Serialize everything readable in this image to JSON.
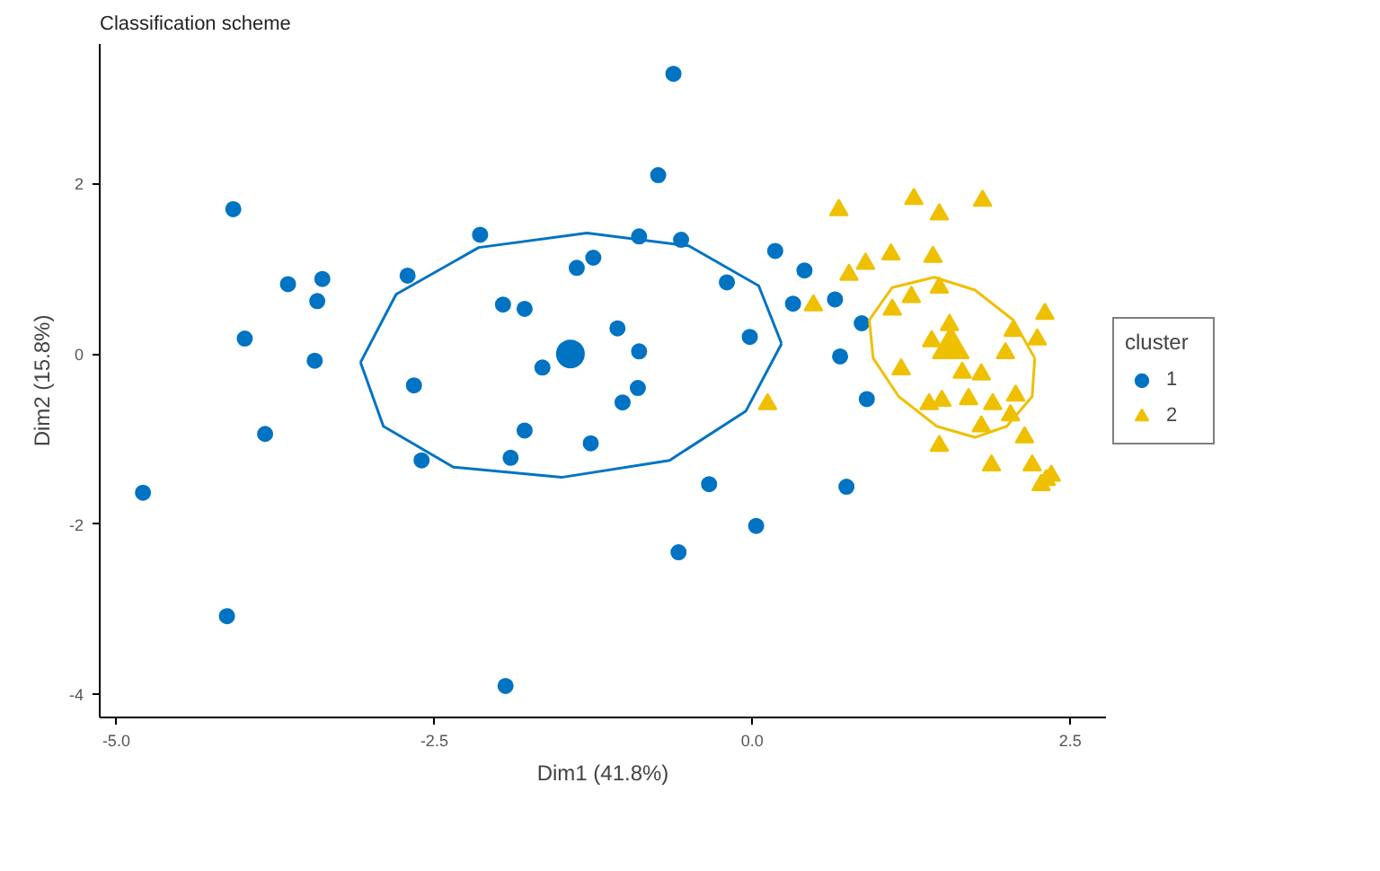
{
  "chart_data": {
    "type": "scatter",
    "title": "Classification scheme",
    "xlabel": "Dim1 (41.8%)",
    "ylabel": "Dim2 (15.8%)",
    "legend_title": "cluster",
    "legend": "right",
    "grid": false,
    "xlim": [
      -5.13,
      2.78
    ],
    "ylim": [
      -4.27,
      3.64
    ],
    "xticks": [
      {
        "value": -5,
        "label": "-5.0"
      },
      {
        "value": -2.5,
        "label": "-2.5"
      },
      {
        "value": 0,
        "label": "0.0"
      },
      {
        "value": 2.5,
        "label": "2.5"
      }
    ],
    "yticks": [
      -4,
      -2,
      0,
      2
    ],
    "series": [
      {
        "name": "1",
        "color": "#0073c2",
        "marker": "circle",
        "x": [
          -4.79,
          -4.13,
          -4.08,
          -3.99,
          -3.83,
          -3.65,
          -3.44,
          -3.42,
          -3.38,
          -2.71,
          -2.66,
          -2.6,
          -2.14,
          -1.96,
          -1.94,
          -1.9,
          -1.79,
          -1.79,
          -1.65,
          -1.38,
          -1.27,
          -1.25,
          -1.06,
          -1.02,
          -0.9,
          -0.89,
          -0.89,
          -0.74,
          -0.62,
          -0.58,
          -0.56,
          -0.34,
          -0.2,
          -0.02,
          0.03,
          0.18,
          0.32,
          0.41,
          0.65,
          0.69,
          0.74,
          0.86,
          0.9
        ],
        "values": [
          -1.63,
          -3.08,
          1.7,
          0.18,
          -0.94,
          0.82,
          -0.08,
          0.62,
          0.88,
          0.92,
          -0.37,
          -1.25,
          1.4,
          0.58,
          -3.9,
          -1.22,
          0.53,
          -0.9,
          -0.16,
          1.01,
          -1.05,
          1.13,
          0.3,
          -0.57,
          -0.4,
          1.38,
          0.03,
          2.1,
          3.29,
          -2.33,
          1.34,
          -1.53,
          0.84,
          0.2,
          -2.02,
          1.21,
          0.59,
          0.98,
          0.64,
          -0.03,
          -1.56,
          0.36,
          -0.53
        ]
      },
      {
        "name": "2",
        "color": "#efc000",
        "marker": "triangle",
        "x": [
          0.12,
          0.48,
          0.68,
          0.76,
          0.89,
          1.09,
          1.1,
          1.17,
          1.25,
          1.27,
          1.39,
          1.41,
          1.42,
          1.47,
          1.47,
          1.47,
          1.49,
          1.52,
          1.55,
          1.65,
          1.7,
          1.8,
          1.8,
          1.81,
          1.88,
          1.89,
          1.99,
          2.03,
          2.05,
          2.07,
          2.14,
          2.2,
          2.24,
          2.27,
          2.3,
          2.31,
          2.35
        ],
        "values": [
          -0.59,
          0.57,
          1.69,
          0.93,
          1.06,
          1.17,
          0.52,
          -0.18,
          0.67,
          1.82,
          -0.59,
          0.15,
          1.14,
          1.64,
          0.78,
          -1.08,
          -0.55,
          null,
          0.34,
          -0.22,
          -0.53,
          -0.24,
          -0.85,
          1.8,
          -1.31,
          -0.59,
          0.01,
          -0.72,
          0.27,
          -0.49,
          -0.98,
          -1.31,
          0.17,
          -1.54,
          0.47,
          -1.48,
          -1.43
        ]
      },
      {
        "type": "bubble",
        "color": "#0073c2",
        "marker": "circle",
        "x": [
          -1.43
        ],
        "values": [
          0.0
        ],
        "sizes": [
          1
        ]
      },
      {
        "type": "bubble",
        "color": "#efc000",
        "marker": "triangle",
        "x": [
          1.56
        ],
        "values": [
          0.07
        ],
        "sizes": [
          1
        ]
      },
      {
        "type": "line",
        "color": "#0073c2",
        "x": [
          -3.08,
          -2.8,
          -2.15,
          -1.3,
          -0.5,
          0.05,
          0.23
        ],
        "values": [
          -0.1,
          0.7,
          1.25,
          1.42,
          1.27,
          0.8,
          0.12
        ]
      },
      {
        "type": "line",
        "color": "#0073c2",
        "x": [
          -3.08,
          -2.9,
          -2.35,
          -1.5,
          -0.65,
          -0.05,
          0.23
        ],
        "values": [
          -0.1,
          -0.85,
          -1.33,
          -1.45,
          -1.25,
          -0.67,
          0.12
        ]
      },
      {
        "type": "line",
        "color": "#efc000",
        "x": [
          0.92,
          1.1,
          1.43,
          1.75,
          2.05,
          2.22
        ],
        "values": [
          0.4,
          0.78,
          0.9,
          0.75,
          0.4,
          -0.05
        ]
      },
      {
        "type": "line",
        "color": "#efc000",
        "x": [
          0.92,
          0.95,
          1.15,
          1.45,
          1.75,
          2.0,
          2.2,
          2.22
        ],
        "values": [
          0.4,
          -0.05,
          -0.5,
          -0.85,
          -0.98,
          -0.85,
          -0.5,
          -0.05
        ]
      }
    ]
  }
}
